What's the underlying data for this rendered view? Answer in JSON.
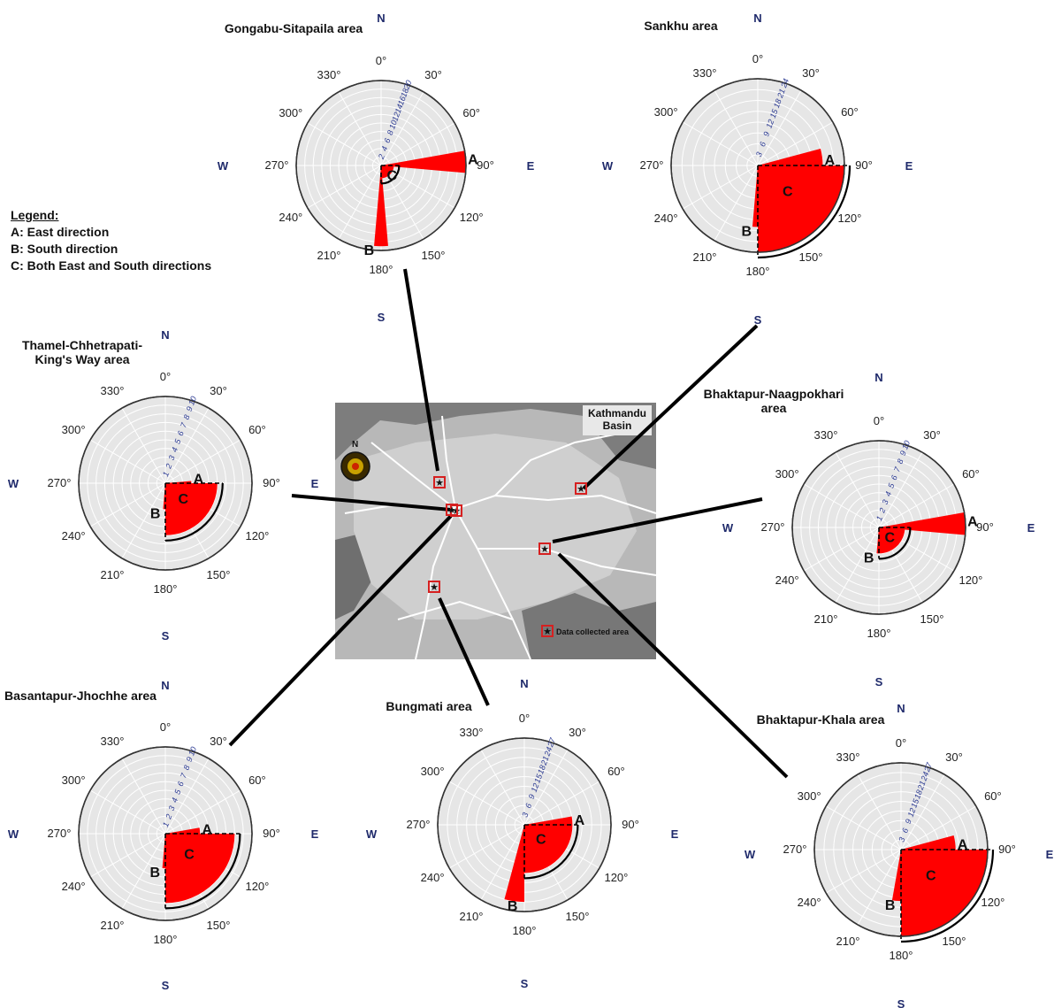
{
  "legend": {
    "heading": "Legend:",
    "items": [
      "A: East direction",
      "B: South direction",
      "C: Both East and South directions"
    ]
  },
  "map": {
    "title_line1": "Kathmandu",
    "title_line2": "Basin",
    "north": "N",
    "key": "Data collected area",
    "colors": {
      "background": "#b8b8b8",
      "road": "#ffffff",
      "marker": "#d62020"
    }
  },
  "compass": {
    "N": "N",
    "E": "E",
    "S": "S",
    "W": "W"
  },
  "degree_labels": [
    "0°",
    "30°",
    "60°",
    "90°",
    "120°",
    "150°",
    "180°",
    "210°",
    "240°",
    "270°",
    "300°",
    "330°"
  ],
  "colors": {
    "wedge": "#ff0000",
    "plot_bg": "#e6e6e6",
    "grid": "#ffffff",
    "ring_text": "#2b3a93",
    "cardinal": "#1f2a6b"
  },
  "sector_labels": {
    "A": "A",
    "B": "B",
    "C": "C"
  },
  "areas": [
    {
      "title": "Gongabu-Sitapaila area",
      "ring_max": 20,
      "ring_ticks": [
        2,
        4,
        6,
        8,
        10,
        12,
        14,
        16,
        18,
        20
      ],
      "sectors": [
        {
          "label": "A",
          "bearing_from": 80,
          "bearing_to": 95,
          "value": 20
        },
        {
          "label": "B",
          "bearing_from": 175,
          "bearing_to": 185,
          "value": 19
        },
        {
          "label": "C",
          "bearing_from": 90,
          "bearing_to": 180,
          "value": 3
        }
      ]
    },
    {
      "title": "Sankhu area",
      "ring_max": 24,
      "ring_ticks": [
        3,
        6,
        9,
        12,
        15,
        18,
        21,
        24
      ],
      "sectors": [
        {
          "label": "A",
          "bearing_from": 75,
          "bearing_to": 90,
          "value": 18
        },
        {
          "label": "B",
          "bearing_from": 180,
          "bearing_to": 185,
          "value": 17
        },
        {
          "label": "C",
          "bearing_from": 90,
          "bearing_to": 180,
          "value": 24
        }
      ]
    },
    {
      "title": "Thamel-Chhetrapati-King's Way area",
      "ring_max": 10,
      "ring_ticks": [
        1,
        2,
        3,
        4,
        5,
        6,
        7,
        8,
        9,
        10
      ],
      "sectors": [
        {
          "label": "A",
          "bearing_from": 85,
          "bearing_to": 90,
          "value": 3
        },
        {
          "label": "B",
          "bearing_from": 180,
          "bearing_to": 185,
          "value": 3
        },
        {
          "label": "C",
          "bearing_from": 90,
          "bearing_to": 180,
          "value": 6
        }
      ]
    },
    {
      "title": "Bhaktapur-Naagpokhari area",
      "ring_max": 10,
      "ring_ticks": [
        1,
        2,
        3,
        4,
        5,
        6,
        7,
        8,
        9,
        10
      ],
      "sectors": [
        {
          "label": "A",
          "bearing_from": 80,
          "bearing_to": 95,
          "value": 10
        },
        {
          "label": "B",
          "bearing_from": 180,
          "bearing_to": 185,
          "value": 3
        },
        {
          "label": "C",
          "bearing_from": 90,
          "bearing_to": 180,
          "value": 3
        }
      ]
    },
    {
      "title": "Basantapur-Jhochhe area",
      "ring_max": 10,
      "ring_ticks": [
        1,
        2,
        3,
        4,
        5,
        6,
        7,
        8,
        9,
        10
      ],
      "sectors": [
        {
          "label": "A",
          "bearing_from": 80,
          "bearing_to": 90,
          "value": 4
        },
        {
          "label": "B",
          "bearing_from": 180,
          "bearing_to": 185,
          "value": 4
        },
        {
          "label": "C",
          "bearing_from": 90,
          "bearing_to": 180,
          "value": 8
        }
      ]
    },
    {
      "title": "Bungmati area",
      "ring_max": 27,
      "ring_ticks": [
        3,
        6,
        9,
        12,
        15,
        18,
        21,
        24,
        27
      ],
      "sectors": [
        {
          "label": "A",
          "bearing_from": 80,
          "bearing_to": 90,
          "value": 15
        },
        {
          "label": "B",
          "bearing_from": 180,
          "bearing_to": 195,
          "value": 24
        },
        {
          "label": "C",
          "bearing_from": 90,
          "bearing_to": 180,
          "value": 15
        }
      ]
    },
    {
      "title": "Bhaktapur-Khala area",
      "ring_max": 27,
      "ring_ticks": [
        3,
        6,
        9,
        12,
        15,
        18,
        21,
        24,
        27
      ],
      "sectors": [
        {
          "label": "A",
          "bearing_from": 75,
          "bearing_to": 90,
          "value": 17
        },
        {
          "label": "B",
          "bearing_from": 180,
          "bearing_to": 190,
          "value": 16
        },
        {
          "label": "C",
          "bearing_from": 90,
          "bearing_to": 180,
          "value": 27
        }
      ]
    }
  ]
}
